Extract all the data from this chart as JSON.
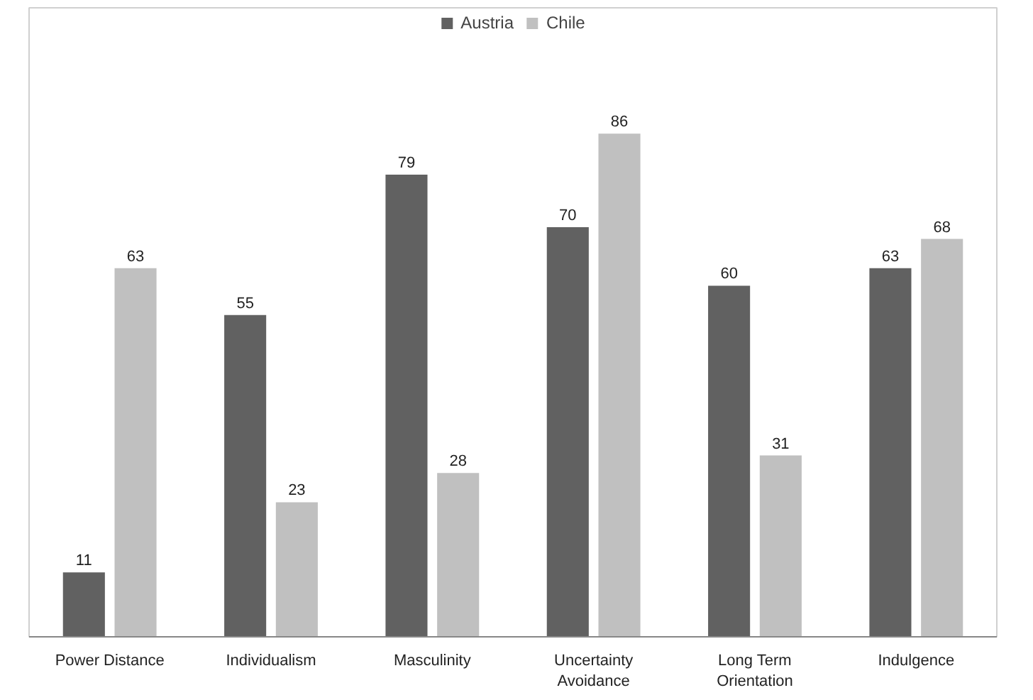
{
  "chart_data": {
    "type": "bar",
    "categories": [
      "Power Distance",
      "Individualism",
      "Masculinity",
      "Uncertainty\nAvoidance",
      "Long Term\nOrientation",
      "Indulgence"
    ],
    "series": [
      {
        "name": "Austria",
        "color": "#616161",
        "values": [
          11,
          55,
          79,
          70,
          60,
          63
        ]
      },
      {
        "name": "Chile",
        "color": "#c0c0c0",
        "values": [
          63,
          23,
          28,
          86,
          31,
          68
        ]
      }
    ],
    "data_labels": true,
    "legend": "top",
    "grid": false
  }
}
